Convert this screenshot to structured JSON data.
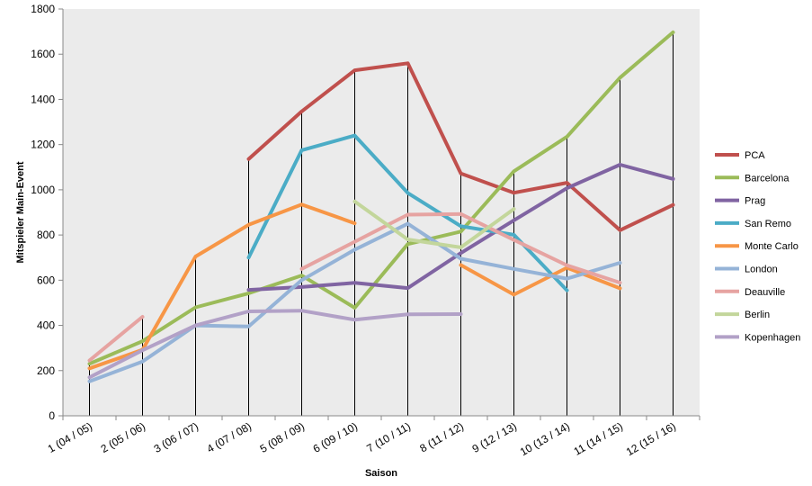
{
  "chart_data": {
    "type": "line",
    "title": "",
    "xlabel": "Saison",
    "ylabel": "Mitspieler Main-Event",
    "ylim": [
      0,
      1800
    ],
    "yticks": [
      0,
      200,
      400,
      600,
      800,
      1000,
      1200,
      1400,
      1600,
      1800
    ],
    "grid": false,
    "drop_lines": true,
    "legend_position": "right",
    "categories": [
      "1 (04 / 05)",
      "2 (05 / 06)",
      "3 (06 / 07)",
      "4 (07 / 08)",
      "5 (08 / 09)",
      "6 (09 / 10)",
      "7 (10 / 11)",
      "8 (11 / 12)",
      "9 (12 / 13)",
      "10 (13 / 14)",
      "11 (14 / 15)",
      "12 (15 / 16)"
    ],
    "series": [
      {
        "name": "PCA",
        "color": "#c0504d",
        "values": [
          null,
          null,
          null,
          1136,
          1347,
          1529,
          1560,
          1072,
          987,
          1031,
          821,
          933
        ]
      },
      {
        "name": "Barcelona",
        "color": "#9bbb59",
        "values": [
          230,
          330,
          480,
          542,
          621,
          478,
          760,
          815,
          1082,
          1235,
          1496,
          1697
        ]
      },
      {
        "name": "Prag",
        "color": "#8064a2",
        "values": [
          null,
          null,
          null,
          557,
          570,
          588,
          565,
          720,
          865,
          1007,
          1111,
          1048
        ]
      },
      {
        "name": "San Remo",
        "color": "#4bacc6",
        "values": [
          null,
          null,
          null,
          700,
          1175,
          1240,
          986,
          839,
          801,
          555,
          null,
          null
        ]
      },
      {
        "name": "Monte Carlo",
        "color": "#f79646",
        "values": [
          210,
          292,
          705,
          845,
          935,
          852,
          null,
          667,
          536,
          655,
          564,
          null
        ]
      },
      {
        "name": "London",
        "color": "#95b3d7",
        "values": [
          152,
          240,
          400,
          395,
          600,
          735,
          850,
          695,
          650,
          607,
          677,
          null
        ]
      },
      {
        "name": "Deauville",
        "color": "#e6a3a1",
        "values": [
          245,
          438,
          null,
          null,
          650,
          770,
          890,
          893,
          778,
          666,
          589,
          null
        ]
      },
      {
        "name": "Berlin",
        "color": "#c3d69b",
        "values": [
          null,
          null,
          null,
          null,
          null,
          948,
          780,
          745,
          915,
          null,
          null,
          null
        ]
      },
      {
        "name": "Kopenhagen",
        "color": "#b2a1c7",
        "values": [
          170,
          290,
          400,
          462,
          465,
          425,
          449,
          450,
          null,
          null,
          null,
          null
        ]
      }
    ]
  }
}
